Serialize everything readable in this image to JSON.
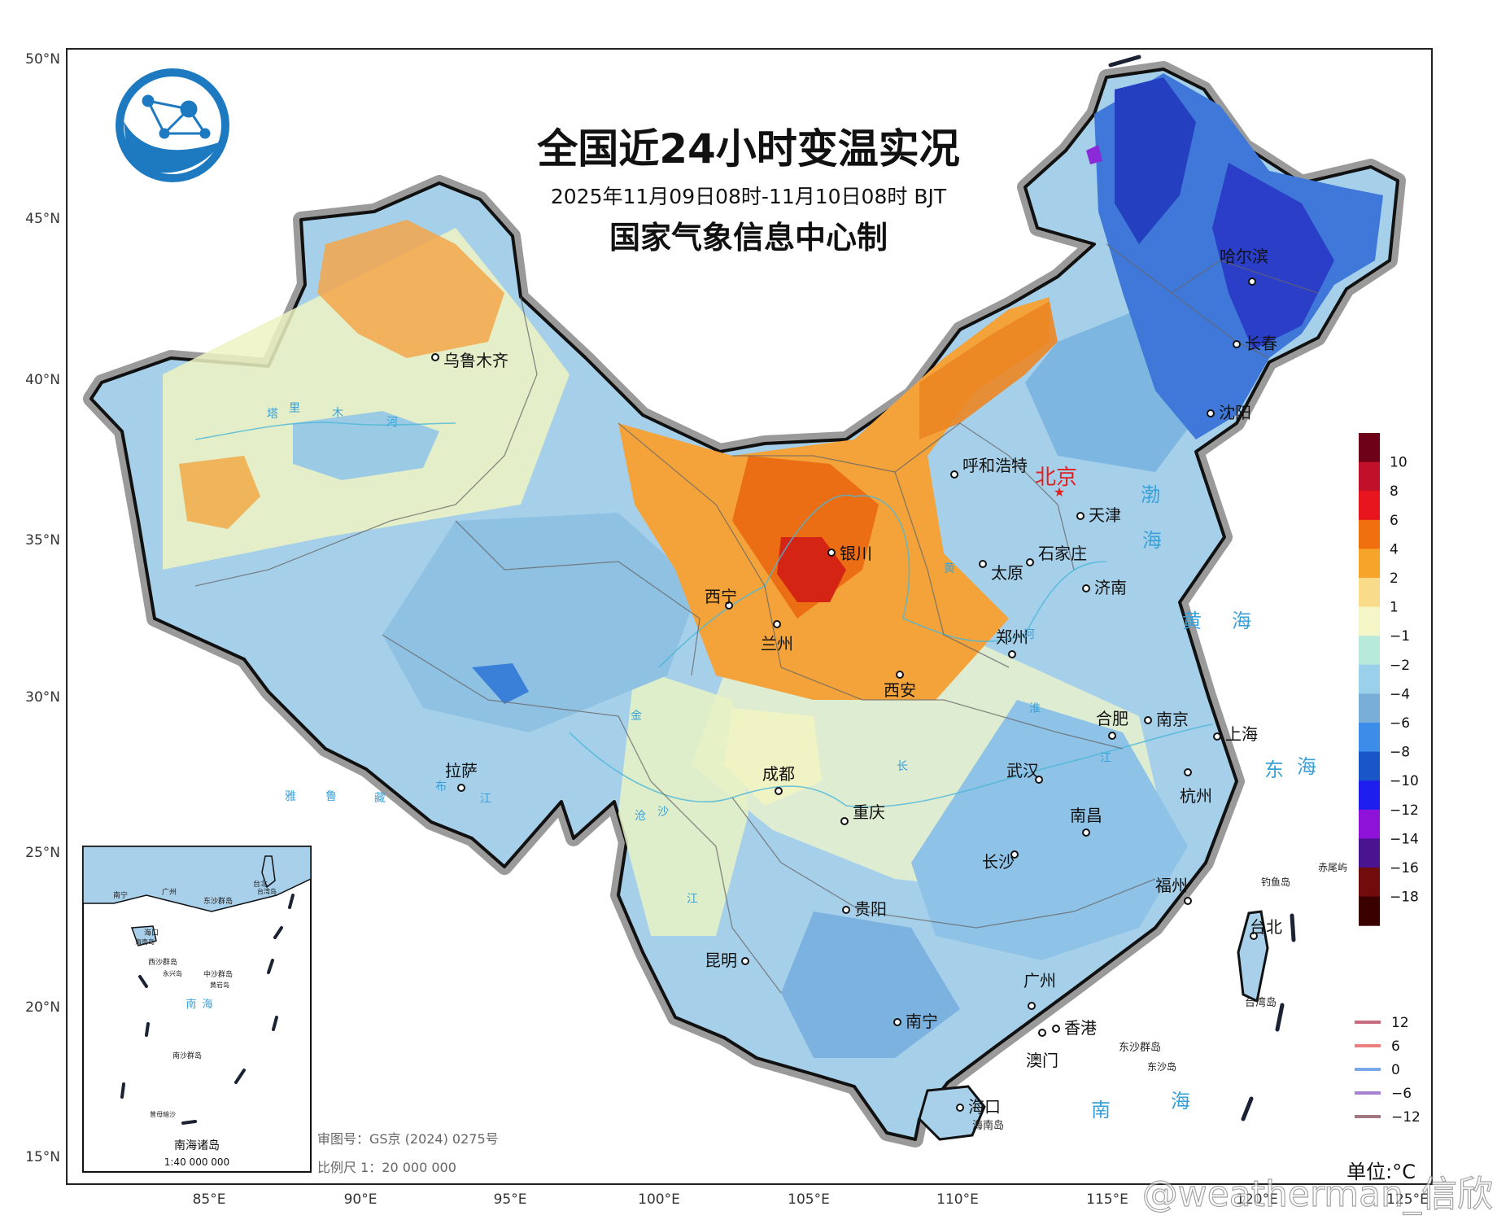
{
  "map": {
    "title": "全国近24小时变温实况",
    "period": "2025年11月09日08时-11月10日08时 BJT",
    "producer": "国家气象信息中心制",
    "lat_labels": [
      "50°N",
      "45°N",
      "40°N",
      "35°N",
      "30°N",
      "25°N",
      "20°N",
      "15°N"
    ],
    "lon_labels": [
      "85°E",
      "90°E",
      "95°E",
      "100°E",
      "105°E",
      "110°E",
      "115°E",
      "120°E",
      "125°E"
    ],
    "unit": "单位:°C",
    "approval": "审图号：GS京 (2024) 0275号",
    "scale": "比例尺  1：20 000 000",
    "watermark": "@weatherman_信欣",
    "logo_icon": "globe-network-logo",
    "cities": [
      {
        "name": "乌鲁木齐"
      },
      {
        "name": "呼和浩特"
      },
      {
        "name": "北京",
        "capital": true
      },
      {
        "name": "天津"
      },
      {
        "name": "石家庄"
      },
      {
        "name": "太原"
      },
      {
        "name": "济南"
      },
      {
        "name": "银川"
      },
      {
        "name": "西宁"
      },
      {
        "name": "兰州"
      },
      {
        "name": "西安"
      },
      {
        "name": "郑州"
      },
      {
        "name": "合肥"
      },
      {
        "name": "南京"
      },
      {
        "name": "上海"
      },
      {
        "name": "杭州"
      },
      {
        "name": "武汉"
      },
      {
        "name": "成都"
      },
      {
        "name": "重庆"
      },
      {
        "name": "拉萨"
      },
      {
        "name": "长沙"
      },
      {
        "name": "南昌"
      },
      {
        "name": "福州"
      },
      {
        "name": "贵阳"
      },
      {
        "name": "昆明"
      },
      {
        "name": "南宁"
      },
      {
        "name": "广州"
      },
      {
        "name": "香港"
      },
      {
        "name": "澳门"
      },
      {
        "name": "海口"
      },
      {
        "name": "台北"
      },
      {
        "name": "哈尔滨"
      },
      {
        "name": "长春"
      },
      {
        "name": "沈阳"
      }
    ],
    "place_labels": [
      "渤",
      "海",
      "黄",
      "海",
      "东",
      "海",
      "南",
      "海",
      "钓鱼岛",
      "赤尾屿",
      "台湾岛",
      "东沙群岛",
      "东沙岛",
      "海南岛"
    ],
    "river_labels": [
      "塔",
      "里",
      "木",
      "河",
      "黄",
      "河",
      "长",
      "江",
      "雅",
      "鲁",
      "藏",
      "布",
      "江",
      "淮",
      "金",
      "沙",
      "江",
      "沧"
    ],
    "inset": {
      "title": "南海诸岛",
      "scale": "1:40 000 000",
      "labels": [
        "南宁",
        "广州",
        "台北",
        "台湾岛",
        "东沙群岛",
        "海口",
        "海南岛",
        "西沙群岛",
        "永兴岛",
        "中沙群岛",
        "黄岩岛",
        "南",
        "海",
        "南沙群岛",
        "曾母暗沙"
      ]
    }
  },
  "legend": {
    "colors": [
      "#6e0018",
      "#c0102a",
      "#e8141e",
      "#f07010",
      "#f6a52a",
      "#f8dc8c",
      "#f4f6c8",
      "#b8eadc",
      "#9ad0ea",
      "#78aed8",
      "#3c8cea",
      "#1a56c8",
      "#1e1eee",
      "#8e12d8",
      "#4a1490",
      "#720c0c",
      "#3a0000"
    ],
    "labels": [
      "10",
      "8",
      "6",
      "4",
      "2",
      "1",
      "−1",
      "−2",
      "−4",
      "−6",
      "−8",
      "−10",
      "−12",
      "−14",
      "−16",
      "−18"
    ]
  },
  "isoline_legend": [
    {
      "label": "12",
      "color": "#c46c7c"
    },
    {
      "label": "6",
      "color": "#ec8080"
    },
    {
      "label": "0",
      "color": "#7aa8e8"
    },
    {
      "label": "−6",
      "color": "#a880d0"
    },
    {
      "label": "−12",
      "color": "#a07880"
    }
  ]
}
